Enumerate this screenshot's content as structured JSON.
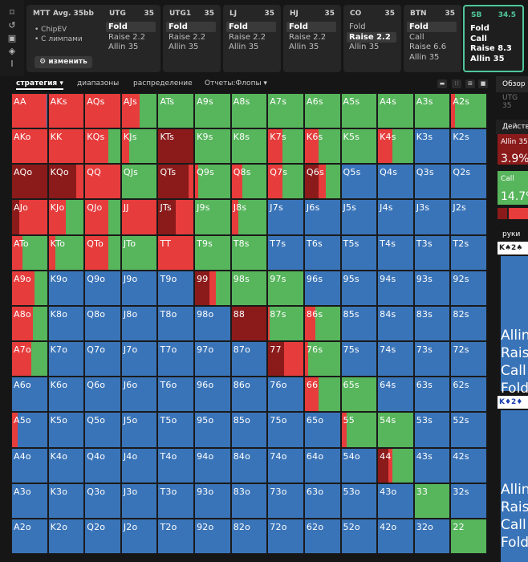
{
  "toolbar": {
    "icons": [
      "bookmark-icon",
      "history-icon",
      "save-icon",
      "gamepad-icon",
      "text-cursor-icon"
    ]
  },
  "header": {
    "mtt_label": "MTT",
    "avg_label": "Avg. 35bb",
    "options": [
      "ChipEV",
      "С лимпами"
    ],
    "change_button": "изменить",
    "positions": [
      {
        "name": "UTG",
        "stack": "35",
        "actions": [
          "Fold",
          "Raise 2.2",
          "Allin 35"
        ],
        "selected": 0,
        "active": false
      },
      {
        "name": "UTG1",
        "stack": "35",
        "actions": [
          "Fold",
          "Raise 2.2",
          "Allin 35"
        ],
        "selected": 0,
        "active": false
      },
      {
        "name": "LJ",
        "stack": "35",
        "actions": [
          "Fold",
          "Raise 2.2",
          "Allin 35"
        ],
        "selected": 0,
        "active": false
      },
      {
        "name": "HJ",
        "stack": "35",
        "actions": [
          "Fold",
          "Raise 2.2",
          "Allin 35"
        ],
        "selected": 0,
        "active": false
      },
      {
        "name": "CO",
        "stack": "35",
        "actions": [
          "Fold",
          "Raise 2.2",
          "Allin 35"
        ],
        "selected": 1,
        "active": false
      },
      {
        "name": "BTN",
        "stack": "35",
        "actions": [
          "Fold",
          "Call",
          "Raise 6.6",
          "Allin 35"
        ],
        "selected": 0,
        "active": false
      },
      {
        "name": "SB",
        "stack": "34.5",
        "actions": [
          "Fold",
          "Call",
          "Raise 8.3",
          "Allin 35"
        ],
        "selected": -1,
        "active": true
      }
    ]
  },
  "tabs": {
    "strategy": "стратегия",
    "ranges": "диапазоны",
    "distribution": "распределение",
    "reports": "Отчеты:Флопы"
  },
  "right_panel": {
    "overview": "Обзор",
    "utg_lbl": "UTG",
    "utg_stack": "35",
    "actions_title": "Действ",
    "allin_label": "Allin 35",
    "allin_pct": "3.9%",
    "call_label": "Call",
    "call_pct": "14.7%",
    "hands_title": "руки",
    "hand1": "K♠2♠",
    "hand2": "K♦2♦",
    "legend1": [
      "Allin",
      "Raise",
      "Call",
      "Fold"
    ],
    "legend2": [
      "Allin",
      "Raise",
      "Call",
      "Fold"
    ]
  },
  "colors": {
    "allin": "#8b1a1a",
    "raise": "#e63c3c",
    "call": "#57b55c",
    "fold": "#3a74b8"
  },
  "ranks": [
    "A",
    "K",
    "Q",
    "J",
    "T",
    "9",
    "8",
    "7",
    "6",
    "5",
    "4",
    "3",
    "2"
  ],
  "grid": [
    [
      [
        0,
        0.98,
        0,
        0.02
      ],
      [
        0,
        1,
        0,
        0
      ],
      [
        0,
        1,
        0,
        0
      ],
      [
        0,
        0.5,
        0.5,
        0
      ],
      [
        0,
        0,
        1,
        0
      ],
      [
        0,
        0,
        1,
        0
      ],
      [
        0,
        0,
        1,
        0
      ],
      [
        0,
        0,
        1,
        0
      ],
      [
        0,
        0,
        1,
        0
      ],
      [
        0,
        0,
        1,
        0
      ],
      [
        0,
        0,
        1,
        0
      ],
      [
        0,
        0,
        1,
        0
      ],
      [
        0,
        0.1,
        0.9,
        0
      ]
    ],
    [
      [
        0,
        1,
        0,
        0
      ],
      [
        0,
        1,
        0,
        0
      ],
      [
        0,
        0.65,
        0.35,
        0
      ],
      [
        0,
        0.2,
        0.8,
        0
      ],
      [
        1,
        0,
        0,
        0
      ],
      [
        0,
        0,
        1,
        0
      ],
      [
        0,
        0,
        1,
        0
      ],
      [
        0,
        0.4,
        0.6,
        0
      ],
      [
        0,
        0.4,
        0.6,
        0
      ],
      [
        0,
        0,
        1,
        0
      ],
      [
        0,
        0.4,
        0.6,
        0
      ],
      [
        0,
        0,
        0,
        1
      ],
      [
        0,
        0,
        0,
        1
      ]
    ],
    [
      [
        1,
        0,
        0,
        0
      ],
      [
        0.8,
        0.2,
        0,
        0
      ],
      [
        0,
        1,
        0,
        0
      ],
      [
        0,
        0,
        1,
        0
      ],
      [
        0.85,
        0.15,
        0,
        0
      ],
      [
        0,
        0.1,
        0.9,
        0
      ],
      [
        0,
        0.3,
        0.7,
        0
      ],
      [
        0,
        0.4,
        0.6,
        0
      ],
      [
        0.4,
        0.2,
        0.4,
        0
      ],
      [
        0,
        0,
        0,
        1
      ],
      [
        0,
        0,
        0,
        1
      ],
      [
        0,
        0,
        0,
        1
      ],
      [
        0,
        0,
        0,
        1
      ]
    ],
    [
      [
        0.2,
        0.8,
        0,
        0
      ],
      [
        0,
        0.5,
        0.5,
        0
      ],
      [
        0,
        0.65,
        0.35,
        0
      ],
      [
        0,
        1,
        0,
        0
      ],
      [
        0.5,
        0.5,
        0,
        0
      ],
      [
        0,
        0,
        1,
        0
      ],
      [
        0,
        0.2,
        0.8,
        0
      ],
      [
        0,
        0,
        0,
        1
      ],
      [
        0,
        0,
        0,
        1
      ],
      [
        0,
        0,
        0,
        1
      ],
      [
        0,
        0,
        0,
        1
      ],
      [
        0,
        0,
        0,
        1
      ],
      [
        0,
        0,
        0,
        1
      ]
    ],
    [
      [
        0,
        0.3,
        0.7,
        0
      ],
      [
        0,
        0.2,
        0.8,
        0
      ],
      [
        0,
        0.65,
        0.35,
        0
      ],
      [
        0,
        0,
        1,
        0
      ],
      [
        0,
        1,
        0,
        0
      ],
      [
        0,
        0,
        1,
        0
      ],
      [
        0,
        0,
        1,
        0
      ],
      [
        0,
        0,
        0,
        1
      ],
      [
        0,
        0,
        0,
        1
      ],
      [
        0,
        0,
        0,
        1
      ],
      [
        0,
        0,
        0,
        1
      ],
      [
        0,
        0,
        0,
        1
      ],
      [
        0,
        0,
        0,
        1
      ]
    ],
    [
      [
        0,
        0.65,
        0.35,
        0
      ],
      [
        0,
        0,
        0,
        1
      ],
      [
        0,
        0,
        0,
        1
      ],
      [
        0,
        0,
        0,
        1
      ],
      [
        0,
        0,
        0,
        1
      ],
      [
        0.4,
        0.2,
        0.4,
        0
      ],
      [
        0,
        0,
        1,
        0
      ],
      [
        0,
        0,
        1,
        0
      ],
      [
        0,
        0,
        0,
        1
      ],
      [
        0,
        0,
        0,
        1
      ],
      [
        0,
        0,
        0,
        1
      ],
      [
        0,
        0,
        0,
        1
      ],
      [
        0,
        0,
        0,
        1
      ]
    ],
    [
      [
        0,
        0.6,
        0.4,
        0
      ],
      [
        0,
        0,
        0,
        1
      ],
      [
        0,
        0,
        0,
        1
      ],
      [
        0,
        0,
        0,
        1
      ],
      [
        0,
        0,
        0,
        1
      ],
      [
        0,
        0,
        0,
        1
      ],
      [
        1,
        0,
        0,
        0
      ],
      [
        0,
        0.05,
        0.95,
        0
      ],
      [
        0,
        0.3,
        0.7,
        0
      ],
      [
        0,
        0,
        0,
        1
      ],
      [
        0,
        0,
        0,
        1
      ],
      [
        0,
        0,
        0,
        1
      ],
      [
        0,
        0,
        0,
        1
      ]
    ],
    [
      [
        0,
        0.55,
        0.45,
        0
      ],
      [
        0,
        0,
        0,
        1
      ],
      [
        0,
        0,
        0,
        1
      ],
      [
        0,
        0,
        0,
        1
      ],
      [
        0,
        0,
        0,
        1
      ],
      [
        0,
        0,
        0,
        1
      ],
      [
        0,
        0,
        0,
        1
      ],
      [
        0.45,
        0.55,
        0,
        0
      ],
      [
        0,
        0.1,
        0.9,
        0
      ],
      [
        0,
        0,
        0,
        1
      ],
      [
        0,
        0,
        0,
        1
      ],
      [
        0,
        0,
        0,
        1
      ],
      [
        0,
        0,
        0,
        1
      ]
    ],
    [
      [
        0,
        0,
        0,
        1
      ],
      [
        0,
        0,
        0,
        1
      ],
      [
        0,
        0,
        0,
        1
      ],
      [
        0,
        0,
        0,
        1
      ],
      [
        0,
        0,
        0,
        1
      ],
      [
        0,
        0,
        0,
        1
      ],
      [
        0,
        0,
        0,
        1
      ],
      [
        0,
        0,
        0,
        1
      ],
      [
        0,
        0.4,
        0.6,
        0
      ],
      [
        0,
        0,
        1,
        0
      ],
      [
        0,
        0,
        0,
        1
      ],
      [
        0,
        0,
        0,
        1
      ],
      [
        0,
        0,
        0,
        1
      ]
    ],
    [
      [
        0,
        0.15,
        0,
        0.85
      ],
      [
        0,
        0,
        0,
        1
      ],
      [
        0,
        0,
        0,
        1
      ],
      [
        0,
        0,
        0,
        1
      ],
      [
        0,
        0,
        0,
        1
      ],
      [
        0,
        0,
        0,
        1
      ],
      [
        0,
        0,
        0,
        1
      ],
      [
        0,
        0,
        0,
        1
      ],
      [
        0,
        0,
        0,
        1
      ],
      [
        0,
        0.15,
        0.85,
        0
      ],
      [
        0,
        0,
        1,
        0
      ],
      [
        0,
        0,
        0,
        1
      ],
      [
        0,
        0,
        0,
        1
      ]
    ],
    [
      [
        0,
        0,
        0,
        1
      ],
      [
        0,
        0,
        0,
        1
      ],
      [
        0,
        0,
        0,
        1
      ],
      [
        0,
        0,
        0,
        1
      ],
      [
        0,
        0,
        0,
        1
      ],
      [
        0,
        0,
        0,
        1
      ],
      [
        0,
        0,
        0,
        1
      ],
      [
        0,
        0,
        0,
        1
      ],
      [
        0,
        0,
        0,
        1
      ],
      [
        0,
        0,
        0,
        1
      ],
      [
        0.3,
        0.1,
        0.6,
        0
      ],
      [
        0,
        0,
        0,
        1
      ],
      [
        0,
        0,
        0,
        1
      ]
    ],
    [
      [
        0,
        0,
        0,
        1
      ],
      [
        0,
        0,
        0,
        1
      ],
      [
        0,
        0,
        0,
        1
      ],
      [
        0,
        0,
        0,
        1
      ],
      [
        0,
        0,
        0,
        1
      ],
      [
        0,
        0,
        0,
        1
      ],
      [
        0,
        0,
        0,
        1
      ],
      [
        0,
        0,
        0,
        1
      ],
      [
        0,
        0,
        0,
        1
      ],
      [
        0,
        0,
        0,
        1
      ],
      [
        0,
        0,
        0,
        1
      ],
      [
        0,
        0,
        1,
        0
      ],
      [
        0,
        0,
        0,
        1
      ]
    ],
    [
      [
        0,
        0,
        0,
        1
      ],
      [
        0,
        0,
        0,
        1
      ],
      [
        0,
        0,
        0,
        1
      ],
      [
        0,
        0,
        0,
        1
      ],
      [
        0,
        0,
        0,
        1
      ],
      [
        0,
        0,
        0,
        1
      ],
      [
        0,
        0,
        0,
        1
      ],
      [
        0,
        0,
        0,
        1
      ],
      [
        0,
        0,
        0,
        1
      ],
      [
        0,
        0,
        0,
        1
      ],
      [
        0,
        0,
        0,
        1
      ],
      [
        0,
        0,
        0,
        1
      ],
      [
        0,
        0,
        1,
        0
      ]
    ]
  ]
}
